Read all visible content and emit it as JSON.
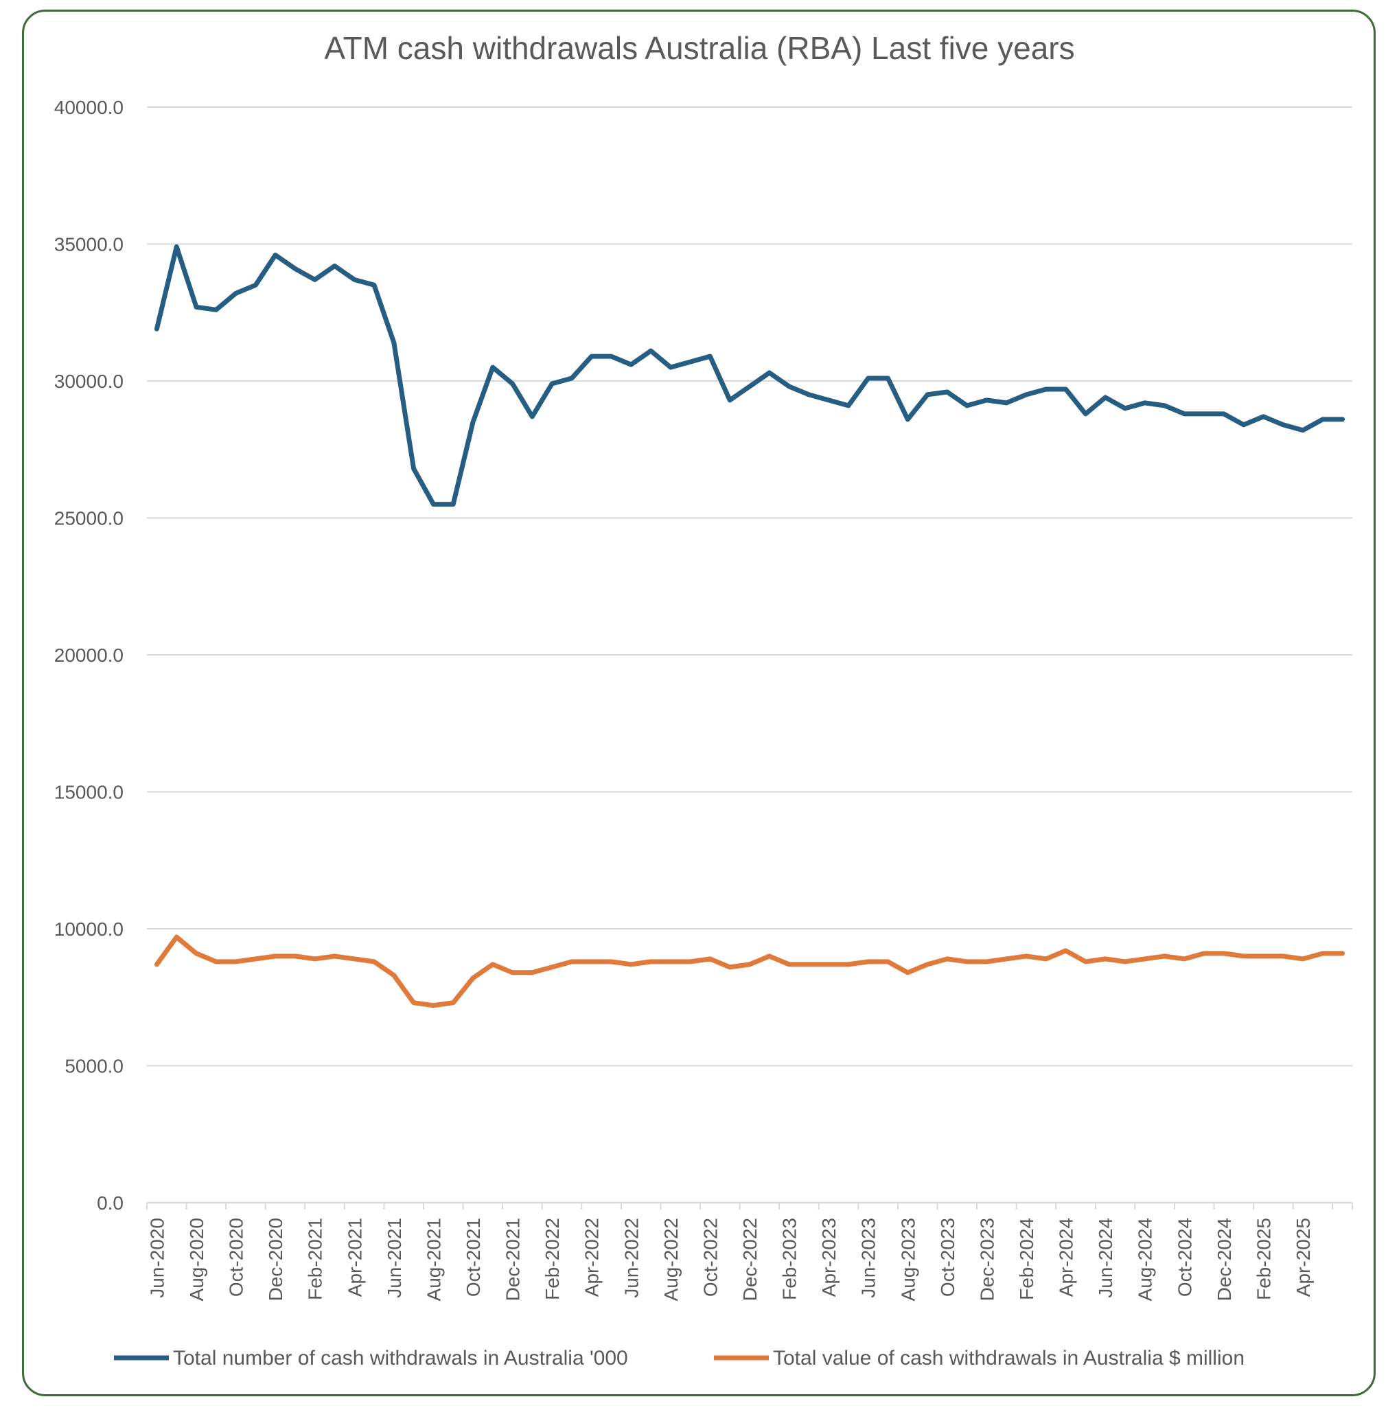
{
  "chart_data": {
    "type": "line",
    "title": "ATM cash withdrawals Australia (RBA) Last five years",
    "xlabel": "",
    "ylabel": "",
    "ylim": [
      0,
      40000
    ],
    "yticks": [
      "0.0",
      "5000.0",
      "10000.0",
      "15000.0",
      "20000.0",
      "25000.0",
      "30000.0",
      "35000.0",
      "40000.0"
    ],
    "categories": [
      "Jun-2020",
      "Jul-2020",
      "Aug-2020",
      "Sep-2020",
      "Oct-2020",
      "Nov-2020",
      "Dec-2020",
      "Jan-2021",
      "Feb-2021",
      "Mar-2021",
      "Apr-2021",
      "May-2021",
      "Jun-2021",
      "Jul-2021",
      "Aug-2021",
      "Sep-2021",
      "Oct-2021",
      "Nov-2021",
      "Dec-2021",
      "Jan-2022",
      "Feb-2022",
      "Mar-2022",
      "Apr-2022",
      "May-2022",
      "Jun-2022",
      "Jul-2022",
      "Aug-2022",
      "Sep-2022",
      "Oct-2022",
      "Nov-2022",
      "Dec-2022",
      "Jan-2023",
      "Feb-2023",
      "Mar-2023",
      "Apr-2023",
      "May-2023",
      "Jun-2023",
      "Jul-2023",
      "Aug-2023",
      "Sep-2023",
      "Oct-2023",
      "Nov-2023",
      "Dec-2023",
      "Jan-2024",
      "Feb-2024",
      "Mar-2024",
      "Apr-2024",
      "May-2024",
      "Jun-2024",
      "Jul-2024",
      "Aug-2024",
      "Sep-2024",
      "Oct-2024",
      "Nov-2024",
      "Dec-2024",
      "Jan-2025",
      "Feb-2025",
      "Mar-2025",
      "Apr-2025",
      "May-2025",
      "Jun-2025"
    ],
    "xtick_labels": [
      "Jun-2020",
      "Aug-2020",
      "Oct-2020",
      "Dec-2020",
      "Feb-2021",
      "Apr-2021",
      "Jun-2021",
      "Aug-2021",
      "Oct-2021",
      "Dec-2021",
      "Feb-2022",
      "Apr-2022",
      "Jun-2022",
      "Aug-2022",
      "Oct-2022",
      "Dec-2022",
      "Feb-2023",
      "Apr-2023",
      "Jun-2023",
      "Aug-2023",
      "Oct-2023",
      "Dec-2023",
      "Feb-2024",
      "Apr-2024",
      "Jun-2024",
      "Aug-2024",
      "Oct-2024",
      "Dec-2024",
      "Feb-2025",
      "Apr-2025"
    ],
    "series": [
      {
        "name": "Total number of cash withdrawals in Australia  '000",
        "color": "#255e82",
        "values": [
          31900,
          34900,
          32700,
          32600,
          33200,
          33500,
          34600,
          34100,
          33700,
          34200,
          33700,
          33500,
          31400,
          26800,
          25500,
          25500,
          28500,
          30500,
          29900,
          28700,
          29900,
          30100,
          30900,
          30900,
          30600,
          31100,
          30500,
          30700,
          30900,
          29300,
          29800,
          30300,
          29800,
          29500,
          29300,
          29100,
          30100,
          30100,
          28600,
          29500,
          29600,
          29100,
          29300,
          29200,
          29500,
          29700,
          29700,
          28800,
          29400,
          29000,
          29200,
          29100,
          28800,
          28800,
          28800,
          28400,
          28700,
          28400,
          28200,
          28600,
          28600
        ]
      },
      {
        "name": "Total value of cash withdrawals in Australia $ million",
        "color": "#e07a3a",
        "values": [
          8700,
          9700,
          9100,
          8800,
          8800,
          8900,
          9000,
          9000,
          8900,
          9000,
          8900,
          8800,
          8300,
          7300,
          7200,
          7300,
          8200,
          8700,
          8400,
          8400,
          8600,
          8800,
          8800,
          8800,
          8700,
          8800,
          8800,
          8800,
          8900,
          8600,
          8700,
          9000,
          8700,
          8700,
          8700,
          8700,
          8800,
          8800,
          8400,
          8700,
          8900,
          8800,
          8800,
          8900,
          9000,
          8900,
          9200,
          8800,
          8900,
          8800,
          8900,
          9000,
          8900,
          9100,
          9100,
          9000,
          9000,
          9000,
          8900,
          9100,
          9100
        ]
      }
    ],
    "legend_position": "bottom",
    "grid": true
  }
}
